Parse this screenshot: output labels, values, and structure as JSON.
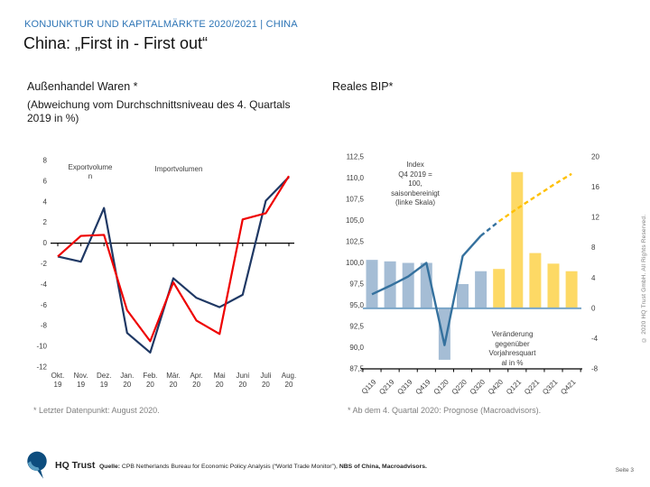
{
  "header": {
    "kicker": "KONJUNKTUR UND KAPITALMÄRKTE 2020/2021 | CHINA",
    "title": "China: „First in - First out“"
  },
  "left_panel": {
    "title": "Außenhandel Waren *",
    "subtitle": "(Abweichung vom Durchschnittsniveau des 4. Quartals 2019 in %)",
    "footnote": "* Letzter Datenpunkt: August 2020."
  },
  "right_panel": {
    "title": "Reales BIP*",
    "annotation_index": "Index\nQ4 2019 =\n100,\nsaisonbereinigt\n(linke Skala)",
    "annotation_change": "Veränderung\ngegenüber\nVorjahresquart\nal in %",
    "footnote": "* Ab dem 4. Quartal 2020: Prognose (Macroadvisors)."
  },
  "footer": {
    "brand": "HQ Trust",
    "source_label": "Quelle:",
    "source_regular": " CPB Netherlands Bureau for Economic Policy Analysis (“World Trade Monitor”),",
    "source_bold": " NBS of China, Macroadvisors.",
    "page": "Seite 3",
    "copyright": "© 2020 HQ Trust GmbH. All Rights Reserved."
  },
  "chart_data": [
    {
      "type": "line",
      "title": "Außenhandel Waren",
      "subtitle": "Abweichung vom Durchschnittsniveau des 4. Quartals 2019 in %",
      "categories": [
        "Okt. 19",
        "Nov. 19",
        "Dez. 19",
        "Jan. 20",
        "Feb. 20",
        "Mär. 20",
        "Apr. 20",
        "Mai 20",
        "Juni 20",
        "Juli 20",
        "Aug. 20"
      ],
      "series": [
        {
          "name": "Exportvolumen",
          "color": "#1f3864",
          "values": [
            -1.3,
            -1.8,
            3.4,
            -8.7,
            -10.6,
            -3.4,
            -5.3,
            -6.2,
            -5.0,
            4.1,
            6.4
          ]
        },
        {
          "name": "Importvolumen",
          "color": "#ee0000",
          "values": [
            -1.3,
            0.7,
            0.8,
            -6.5,
            -9.5,
            -3.8,
            -7.5,
            -8.8,
            2.3,
            2.9,
            6.5
          ]
        }
      ],
      "y_axis": {
        "min": -12,
        "max": 8,
        "tick_values": [
          8,
          6,
          4,
          2,
          0,
          -2,
          -4,
          -6,
          -8,
          -10,
          -12
        ],
        "tick_labels": [
          "8",
          "6",
          "4",
          "2",
          "0",
          "-2",
          "-4",
          "-6",
          "-8",
          "-10",
          "-12"
        ]
      },
      "grid": false,
      "legend_position": "inside-top"
    },
    {
      "type": "combo",
      "title": "Reales BIP",
      "categories": [
        "Q119",
        "Q219",
        "Q319",
        "Q419",
        "Q120",
        "Q220",
        "Q320",
        "Q420",
        "Q121",
        "Q221",
        "Q321",
        "Q421"
      ],
      "bars": {
        "name": "Veränderung gegenüber Vorjahresquartal in %",
        "axis": "right",
        "values": [
          6.4,
          6.2,
          6.0,
          6.0,
          -6.8,
          3.2,
          4.9,
          5.2,
          18.0,
          7.3,
          5.9,
          4.9
        ]
      },
      "line": {
        "name": "Index Q4 2019 = 100, saisonbereinigt (linke Skala)",
        "axis": "left",
        "values": [
          96.3,
          97.3,
          98.4,
          100.0,
          90.3,
          100.8,
          103.2,
          104.9,
          106.4,
          107.8,
          109.2,
          110.5
        ],
        "solid_until_index": 6,
        "blue_dash_until_index": 7
      },
      "forecast_from_index": 7,
      "left_axis": {
        "min": 87.5,
        "max": 112.5,
        "tick_values": [
          112.5,
          110,
          107.5,
          105,
          102.5,
          100,
          97.5,
          95,
          92.5,
          90,
          87.5
        ],
        "tick_labels": [
          "112,5",
          "110,0",
          "107,5",
          "105,0",
          "102,5",
          "100,0",
          "97,5",
          "95,0",
          "92,5",
          "90,0",
          "87,5"
        ]
      },
      "right_axis": {
        "min": -8,
        "max": 20,
        "tick_values": [
          20,
          16,
          12,
          8,
          4,
          0,
          -4,
          -8
        ],
        "tick_labels": [
          "20",
          "16",
          "12",
          "8",
          "4",
          "0",
          "-4",
          "-8"
        ]
      },
      "colors": {
        "bar_actual": "#a5bdd5",
        "bar_forecast": "#fdd965",
        "line_actual": "#35719e",
        "line_forecast": "#ffc000",
        "baseline": "#7aa6c8"
      },
      "grid": false
    }
  ]
}
